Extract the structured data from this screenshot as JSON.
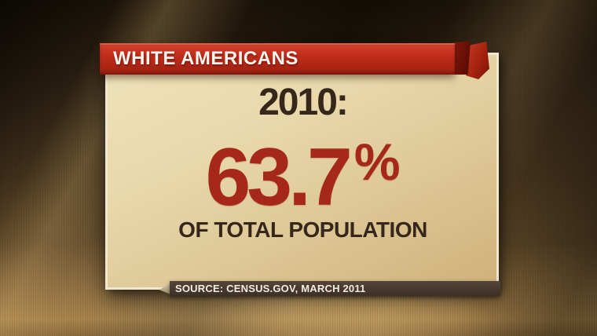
{
  "chart_data": {
    "type": "stat",
    "title": "WHITE AMERICANS",
    "categories": [
      "2010"
    ],
    "values": [
      63.7
    ],
    "unit": "%",
    "caption": "OF TOTAL POPULATION",
    "source": "CENSUS.GOV, MARCH 2011",
    "notes": "TV full-screen infographic: single statistic, no axes or legend"
  },
  "banner": {
    "title": "WHITE AMERICANS"
  },
  "stat": {
    "year_label": "2010:",
    "value": "63.7",
    "unit": "%",
    "caption": "OF TOTAL POPULATION"
  },
  "source": {
    "text": "SOURCE: CENSUS.GOV, MARCH 2011"
  },
  "colors": {
    "banner_red": "#bd2c1a",
    "stat_red": "#a5281b",
    "card_cream": "#e9d8ab",
    "card_border": "#f0e7cf",
    "text_dark": "#36271a",
    "source_bar_brown": "#3c3027",
    "source_text": "#f3ece0",
    "background_bronze": "#41301b"
  }
}
